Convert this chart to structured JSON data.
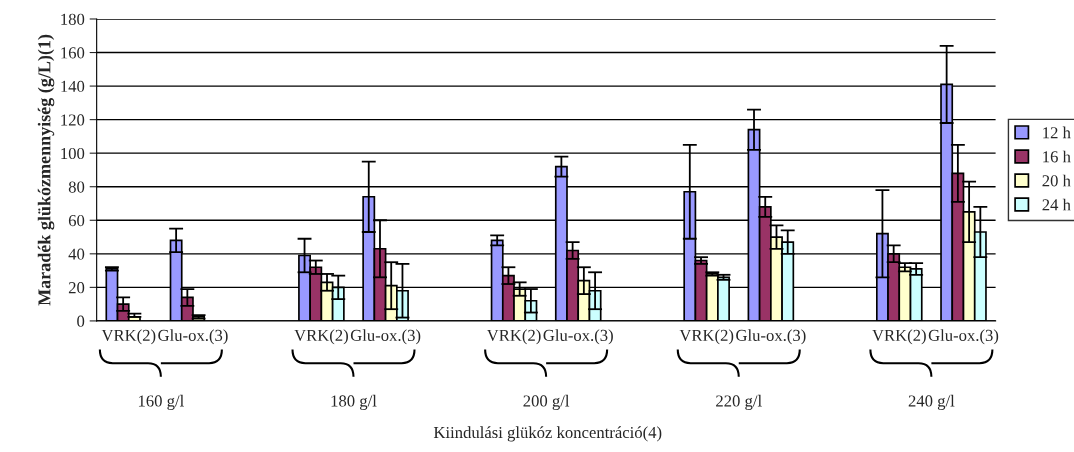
{
  "chart_data": {
    "type": "bar",
    "ylabel": "Maradék glükózmennyiség (g/L)(1)",
    "categories": [
      "VRK(2)",
      "Glu-ox.(3)",
      null,
      "VRK(2)",
      "Glu-ox.(3)",
      null,
      "VRK(2)",
      "Glu-ox.(3)",
      null,
      "VRK(2)",
      "Glu-ox.(3)",
      null,
      "VRK(2)",
      "Glu-ox.(3)"
    ],
    "series": [
      {
        "name": "12 h",
        "color": "#9999ff",
        "values": [
          31,
          48,
          null,
          39,
          74,
          null,
          48,
          92,
          null,
          77,
          114,
          null,
          52,
          141
        ],
        "errors": [
          1,
          7,
          null,
          10,
          21,
          null,
          3,
          6,
          null,
          28,
          12,
          null,
          26,
          23
        ]
      },
      {
        "name": "16 h",
        "color": "#993366",
        "values": [
          10,
          14,
          null,
          32,
          43,
          null,
          27,
          42,
          null,
          36,
          68,
          null,
          40,
          88
        ],
        "errors": [
          4,
          5,
          null,
          4,
          17,
          null,
          5,
          5,
          null,
          2,
          6,
          null,
          5,
          17
        ]
      },
      {
        "name": "20 h",
        "color": "#ffffcc",
        "values": [
          2.4,
          2.4,
          null,
          23,
          21,
          null,
          19,
          24,
          null,
          28,
          50,
          null,
          32,
          65
        ],
        "errors": [
          [
            2.4,
            4.4
          ],
          1,
          null,
          5,
          14,
          null,
          4,
          8,
          null,
          1,
          7,
          null,
          2.5,
          18
        ]
      },
      {
        "name": "24 h",
        "color": "#ccffff",
        "values": [
          null,
          null,
          null,
          20,
          18,
          null,
          12,
          18,
          null,
          26,
          47,
          null,
          31,
          53
        ],
        "errors": [
          null,
          null,
          null,
          7,
          16,
          null,
          7,
          11,
          null,
          1.5,
          7,
          null,
          3.5,
          15
        ]
      }
    ],
    "ylim": [
      0,
      180
    ],
    "yticks": [
      0,
      20,
      40,
      60,
      80,
      100,
      120,
      140,
      160,
      180
    ],
    "grid": "y",
    "legend": "right",
    "annotations": [
      "160 g/l",
      "180 g/l",
      "200 g/l",
      "220 g/l",
      "240 g/l",
      "Kiindulási glükóz koncentráció(4)"
    ]
  }
}
